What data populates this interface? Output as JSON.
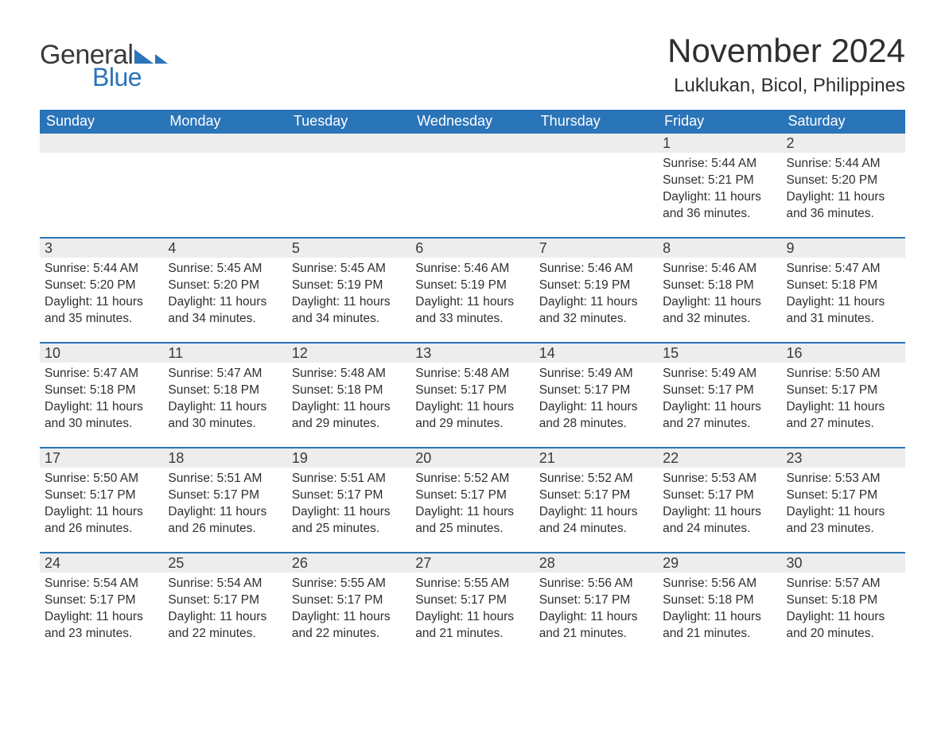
{
  "logo": {
    "text_general": "General",
    "text_blue": "Blue",
    "mark_color": "#2a74b8"
  },
  "header": {
    "month_title": "November 2024",
    "location": "Luklukan, Bicol, Philippines"
  },
  "colors": {
    "header_bg": "#2a74b8",
    "daynum_bg": "#ededed",
    "text": "#2f2f2f",
    "row_border": "#2a74b8"
  },
  "fonts": {
    "month_title_size": 42,
    "location_size": 24,
    "weekday_size": 18,
    "daynum_size": 18,
    "body_size": 15.5
  },
  "weekdays": [
    "Sunday",
    "Monday",
    "Tuesday",
    "Wednesday",
    "Thursday",
    "Friday",
    "Saturday"
  ],
  "weeks": [
    [
      {
        "empty": true
      },
      {
        "empty": true
      },
      {
        "empty": true
      },
      {
        "empty": true
      },
      {
        "empty": true
      },
      {
        "num": "1",
        "sunrise": "Sunrise: 5:44 AM",
        "sunset": "Sunset: 5:21 PM",
        "daylight1": "Daylight: 11 hours",
        "daylight2": "and 36 minutes."
      },
      {
        "num": "2",
        "sunrise": "Sunrise: 5:44 AM",
        "sunset": "Sunset: 5:20 PM",
        "daylight1": "Daylight: 11 hours",
        "daylight2": "and 36 minutes."
      }
    ],
    [
      {
        "num": "3",
        "sunrise": "Sunrise: 5:44 AM",
        "sunset": "Sunset: 5:20 PM",
        "daylight1": "Daylight: 11 hours",
        "daylight2": "and 35 minutes."
      },
      {
        "num": "4",
        "sunrise": "Sunrise: 5:45 AM",
        "sunset": "Sunset: 5:20 PM",
        "daylight1": "Daylight: 11 hours",
        "daylight2": "and 34 minutes."
      },
      {
        "num": "5",
        "sunrise": "Sunrise: 5:45 AM",
        "sunset": "Sunset: 5:19 PM",
        "daylight1": "Daylight: 11 hours",
        "daylight2": "and 34 minutes."
      },
      {
        "num": "6",
        "sunrise": "Sunrise: 5:46 AM",
        "sunset": "Sunset: 5:19 PM",
        "daylight1": "Daylight: 11 hours",
        "daylight2": "and 33 minutes."
      },
      {
        "num": "7",
        "sunrise": "Sunrise: 5:46 AM",
        "sunset": "Sunset: 5:19 PM",
        "daylight1": "Daylight: 11 hours",
        "daylight2": "and 32 minutes."
      },
      {
        "num": "8",
        "sunrise": "Sunrise: 5:46 AM",
        "sunset": "Sunset: 5:18 PM",
        "daylight1": "Daylight: 11 hours",
        "daylight2": "and 32 minutes."
      },
      {
        "num": "9",
        "sunrise": "Sunrise: 5:47 AM",
        "sunset": "Sunset: 5:18 PM",
        "daylight1": "Daylight: 11 hours",
        "daylight2": "and 31 minutes."
      }
    ],
    [
      {
        "num": "10",
        "sunrise": "Sunrise: 5:47 AM",
        "sunset": "Sunset: 5:18 PM",
        "daylight1": "Daylight: 11 hours",
        "daylight2": "and 30 minutes."
      },
      {
        "num": "11",
        "sunrise": "Sunrise: 5:47 AM",
        "sunset": "Sunset: 5:18 PM",
        "daylight1": "Daylight: 11 hours",
        "daylight2": "and 30 minutes."
      },
      {
        "num": "12",
        "sunrise": "Sunrise: 5:48 AM",
        "sunset": "Sunset: 5:18 PM",
        "daylight1": "Daylight: 11 hours",
        "daylight2": "and 29 minutes."
      },
      {
        "num": "13",
        "sunrise": "Sunrise: 5:48 AM",
        "sunset": "Sunset: 5:17 PM",
        "daylight1": "Daylight: 11 hours",
        "daylight2": "and 29 minutes."
      },
      {
        "num": "14",
        "sunrise": "Sunrise: 5:49 AM",
        "sunset": "Sunset: 5:17 PM",
        "daylight1": "Daylight: 11 hours",
        "daylight2": "and 28 minutes."
      },
      {
        "num": "15",
        "sunrise": "Sunrise: 5:49 AM",
        "sunset": "Sunset: 5:17 PM",
        "daylight1": "Daylight: 11 hours",
        "daylight2": "and 27 minutes."
      },
      {
        "num": "16",
        "sunrise": "Sunrise: 5:50 AM",
        "sunset": "Sunset: 5:17 PM",
        "daylight1": "Daylight: 11 hours",
        "daylight2": "and 27 minutes."
      }
    ],
    [
      {
        "num": "17",
        "sunrise": "Sunrise: 5:50 AM",
        "sunset": "Sunset: 5:17 PM",
        "daylight1": "Daylight: 11 hours",
        "daylight2": "and 26 minutes."
      },
      {
        "num": "18",
        "sunrise": "Sunrise: 5:51 AM",
        "sunset": "Sunset: 5:17 PM",
        "daylight1": "Daylight: 11 hours",
        "daylight2": "and 26 minutes."
      },
      {
        "num": "19",
        "sunrise": "Sunrise: 5:51 AM",
        "sunset": "Sunset: 5:17 PM",
        "daylight1": "Daylight: 11 hours",
        "daylight2": "and 25 minutes."
      },
      {
        "num": "20",
        "sunrise": "Sunrise: 5:52 AM",
        "sunset": "Sunset: 5:17 PM",
        "daylight1": "Daylight: 11 hours",
        "daylight2": "and 25 minutes."
      },
      {
        "num": "21",
        "sunrise": "Sunrise: 5:52 AM",
        "sunset": "Sunset: 5:17 PM",
        "daylight1": "Daylight: 11 hours",
        "daylight2": "and 24 minutes."
      },
      {
        "num": "22",
        "sunrise": "Sunrise: 5:53 AM",
        "sunset": "Sunset: 5:17 PM",
        "daylight1": "Daylight: 11 hours",
        "daylight2": "and 24 minutes."
      },
      {
        "num": "23",
        "sunrise": "Sunrise: 5:53 AM",
        "sunset": "Sunset: 5:17 PM",
        "daylight1": "Daylight: 11 hours",
        "daylight2": "and 23 minutes."
      }
    ],
    [
      {
        "num": "24",
        "sunrise": "Sunrise: 5:54 AM",
        "sunset": "Sunset: 5:17 PM",
        "daylight1": "Daylight: 11 hours",
        "daylight2": "and 23 minutes."
      },
      {
        "num": "25",
        "sunrise": "Sunrise: 5:54 AM",
        "sunset": "Sunset: 5:17 PM",
        "daylight1": "Daylight: 11 hours",
        "daylight2": "and 22 minutes."
      },
      {
        "num": "26",
        "sunrise": "Sunrise: 5:55 AM",
        "sunset": "Sunset: 5:17 PM",
        "daylight1": "Daylight: 11 hours",
        "daylight2": "and 22 minutes."
      },
      {
        "num": "27",
        "sunrise": "Sunrise: 5:55 AM",
        "sunset": "Sunset: 5:17 PM",
        "daylight1": "Daylight: 11 hours",
        "daylight2": "and 21 minutes."
      },
      {
        "num": "28",
        "sunrise": "Sunrise: 5:56 AM",
        "sunset": "Sunset: 5:17 PM",
        "daylight1": "Daylight: 11 hours",
        "daylight2": "and 21 minutes."
      },
      {
        "num": "29",
        "sunrise": "Sunrise: 5:56 AM",
        "sunset": "Sunset: 5:18 PM",
        "daylight1": "Daylight: 11 hours",
        "daylight2": "and 21 minutes."
      },
      {
        "num": "30",
        "sunrise": "Sunrise: 5:57 AM",
        "sunset": "Sunset: 5:18 PM",
        "daylight1": "Daylight: 11 hours",
        "daylight2": "and 20 minutes."
      }
    ]
  ]
}
